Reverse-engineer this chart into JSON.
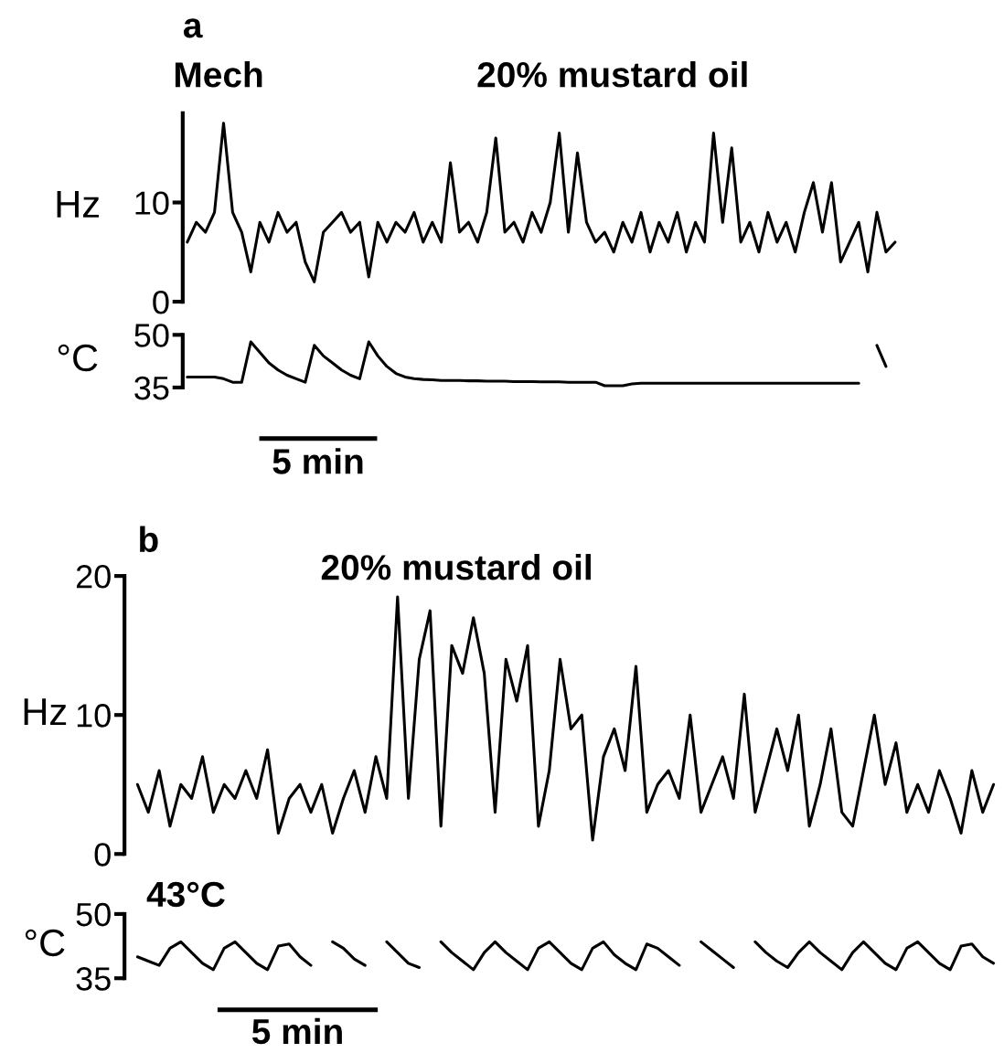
{
  "chart_data": [
    {
      "type": "line",
      "title": "a",
      "ylabel": "Hz",
      "annotations": [
        "Mech",
        "20% mustard oil"
      ],
      "ylim": [
        0,
        19
      ],
      "yticks": [
        0,
        10
      ],
      "tick_labels": "y",
      "categories": [
        null,
        null,
        null,
        null,
        null,
        null,
        null,
        null,
        null,
        null,
        null,
        null,
        null,
        null,
        null,
        null,
        null,
        null,
        null,
        null,
        null,
        null,
        null,
        null,
        null,
        null,
        null,
        null,
        null,
        null,
        null,
        null,
        null,
        null,
        null,
        null,
        null,
        null,
        null,
        null,
        null,
        null,
        null,
        null,
        null,
        null,
        null,
        null,
        null,
        null,
        null,
        null,
        null,
        null,
        null,
        null,
        null,
        null,
        null,
        null,
        null,
        null,
        null,
        null,
        null,
        null,
        null,
        null,
        null,
        null,
        null,
        null,
        null,
        null,
        null,
        null,
        null,
        null,
        null
      ],
      "series": [
        {
          "color": "#000000",
          "values": [
            6,
            8,
            7,
            9,
            18,
            9,
            7,
            3,
            8,
            6,
            9,
            7,
            8,
            4,
            2,
            7,
            8,
            9,
            7,
            8,
            2.5,
            8,
            6,
            8,
            7,
            9,
            6,
            8,
            6,
            14,
            7,
            8,
            6,
            9,
            16.5,
            7,
            8,
            6,
            9,
            7,
            10,
            17,
            7,
            15,
            8,
            6,
            7,
            5,
            8,
            6,
            9,
            5,
            8,
            6,
            9,
            5,
            8,
            6,
            17,
            8,
            15.5,
            6,
            8,
            5,
            9,
            6,
            8,
            5,
            9,
            12,
            7,
            12,
            4,
            6,
            8,
            3,
            9,
            5,
            6
          ]
        }
      ]
    },
    {
      "type": "line",
      "ylabel": "°C",
      "annotations": [
        "5 min"
      ],
      "ylim": [
        35,
        50
      ],
      "yticks": [
        35,
        50
      ],
      "tick_labels": "y",
      "categories": [
        null,
        null,
        null,
        null,
        null,
        null,
        null,
        null,
        null,
        null,
        null,
        null,
        null,
        null,
        null,
        null,
        null,
        null,
        null,
        null,
        null,
        null,
        null,
        null,
        null,
        null,
        null,
        null,
        null,
        null,
        null,
        null,
        null,
        null,
        null,
        null,
        null,
        null,
        null,
        null,
        null,
        null,
        null,
        null,
        null,
        null,
        null,
        null,
        null,
        null,
        null,
        null,
        null,
        null,
        null,
        null,
        null,
        null,
        null,
        null,
        null,
        null,
        null,
        null,
        null,
        null,
        null,
        null,
        null,
        null,
        null,
        null,
        null,
        null,
        null,
        null,
        null,
        null,
        null
      ],
      "series": [
        {
          "color": "#000000",
          "values": [
            38,
            38,
            38,
            38,
            37.5,
            36.5,
            36.5,
            48,
            45,
            42,
            40,
            38.5,
            37.5,
            36.5,
            47,
            44,
            42,
            40,
            38.5,
            37.5,
            48,
            44,
            41,
            39,
            38,
            37.5,
            37.3,
            37.2,
            37,
            37,
            37,
            36.9,
            36.9,
            36.8,
            36.8,
            36.8,
            36.7,
            36.7,
            36.7,
            36.6,
            36.6,
            36.6,
            36.5,
            36.5,
            36.5,
            36.5,
            35.5,
            35.5,
            35.5,
            36,
            36.2,
            36.2,
            36.2,
            36.2,
            36.2,
            36.2,
            36.2,
            36.2,
            36.2,
            36.2,
            36.2,
            36.2,
            36.2,
            36.2,
            36.2,
            36.2,
            36.2,
            36.2,
            36.2,
            36.2,
            36.2,
            36.2,
            36.2,
            36.2,
            36.2,
            null,
            47,
            41,
            null
          ]
        }
      ]
    },
    {
      "type": "line",
      "title": "b",
      "ylabel": "Hz",
      "annotations": [
        "20% mustard oil"
      ],
      "ylim": [
        0,
        20
      ],
      "yticks": [
        0,
        10,
        20
      ],
      "tick_labels": "y",
      "categories": [
        null,
        null,
        null,
        null,
        null,
        null,
        null,
        null,
        null,
        null,
        null,
        null,
        null,
        null,
        null,
        null,
        null,
        null,
        null,
        null,
        null,
        null,
        null,
        null,
        null,
        null,
        null,
        null,
        null,
        null,
        null,
        null,
        null,
        null,
        null,
        null,
        null,
        null,
        null,
        null,
        null,
        null,
        null,
        null,
        null,
        null,
        null,
        null,
        null,
        null,
        null,
        null,
        null,
        null,
        null,
        null,
        null,
        null,
        null,
        null,
        null,
        null,
        null,
        null,
        null,
        null,
        null,
        null,
        null,
        null,
        null,
        null,
        null,
        null,
        null,
        null,
        null,
        null,
        null,
        null
      ],
      "series": [
        {
          "color": "#000000",
          "values": [
            5,
            3,
            6,
            2,
            5,
            4,
            7,
            3,
            5,
            4,
            6,
            4,
            7.5,
            1.5,
            4,
            5,
            3,
            5,
            1.5,
            4,
            6,
            3,
            7,
            4,
            18.5,
            4,
            14,
            17.5,
            2,
            15,
            13,
            17,
            13,
            3,
            14,
            11,
            15,
            2,
            6,
            14,
            9,
            10,
            1,
            7,
            9,
            6,
            13.5,
            3,
            5,
            6,
            4,
            10,
            3,
            5,
            7,
            4,
            11.5,
            3,
            6,
            9,
            6,
            10,
            2,
            5,
            9,
            3,
            2,
            6,
            10,
            5,
            8,
            3,
            5,
            3,
            6,
            4,
            1.5,
            6,
            3,
            5
          ]
        }
      ]
    },
    {
      "type": "line",
      "ylabel": "°C",
      "annotations": [
        "43°C",
        "5 min"
      ],
      "ylim": [
        35,
        50
      ],
      "yticks": [
        35,
        50
      ],
      "tick_labels": "y",
      "categories": [
        null,
        null,
        null,
        null,
        null,
        null,
        null,
        null,
        null,
        null,
        null,
        null,
        null,
        null,
        null,
        null,
        null,
        null,
        null,
        null,
        null,
        null,
        null,
        null,
        null,
        null,
        null,
        null,
        null,
        null,
        null,
        null,
        null,
        null,
        null,
        null,
        null,
        null,
        null,
        null,
        null,
        null,
        null,
        null,
        null,
        null,
        null,
        null,
        null,
        null,
        null,
        null,
        null,
        null,
        null,
        null,
        null,
        null,
        null,
        null,
        null,
        null,
        null,
        null,
        null,
        null,
        null,
        null,
        null,
        null,
        null,
        null,
        null,
        null,
        null,
        null,
        null,
        null,
        null,
        null
      ],
      "series": [
        {
          "color": "#000000",
          "values": [
            40,
            39,
            38,
            42,
            43.5,
            41,
            38.5,
            37,
            42,
            43.5,
            41,
            38.5,
            37,
            42.5,
            43,
            40,
            38,
            null,
            43.5,
            42,
            39.5,
            38,
            null,
            43.5,
            41,
            38.5,
            37.5,
            null,
            43.5,
            41,
            39,
            37,
            41,
            43.5,
            41,
            39,
            37,
            42,
            43.5,
            41,
            38.5,
            37,
            42,
            43.5,
            40.5,
            38.5,
            37,
            43,
            42,
            40,
            38,
            null,
            43.5,
            41.5,
            39.5,
            37.5,
            null,
            43.5,
            41,
            39,
            37.5,
            41,
            43.5,
            41,
            39,
            37,
            41,
            43.5,
            41,
            38.5,
            37,
            42,
            43.5,
            41,
            38.5,
            37,
            42.5,
            43,
            40,
            38.5
          ]
        }
      ]
    }
  ]
}
